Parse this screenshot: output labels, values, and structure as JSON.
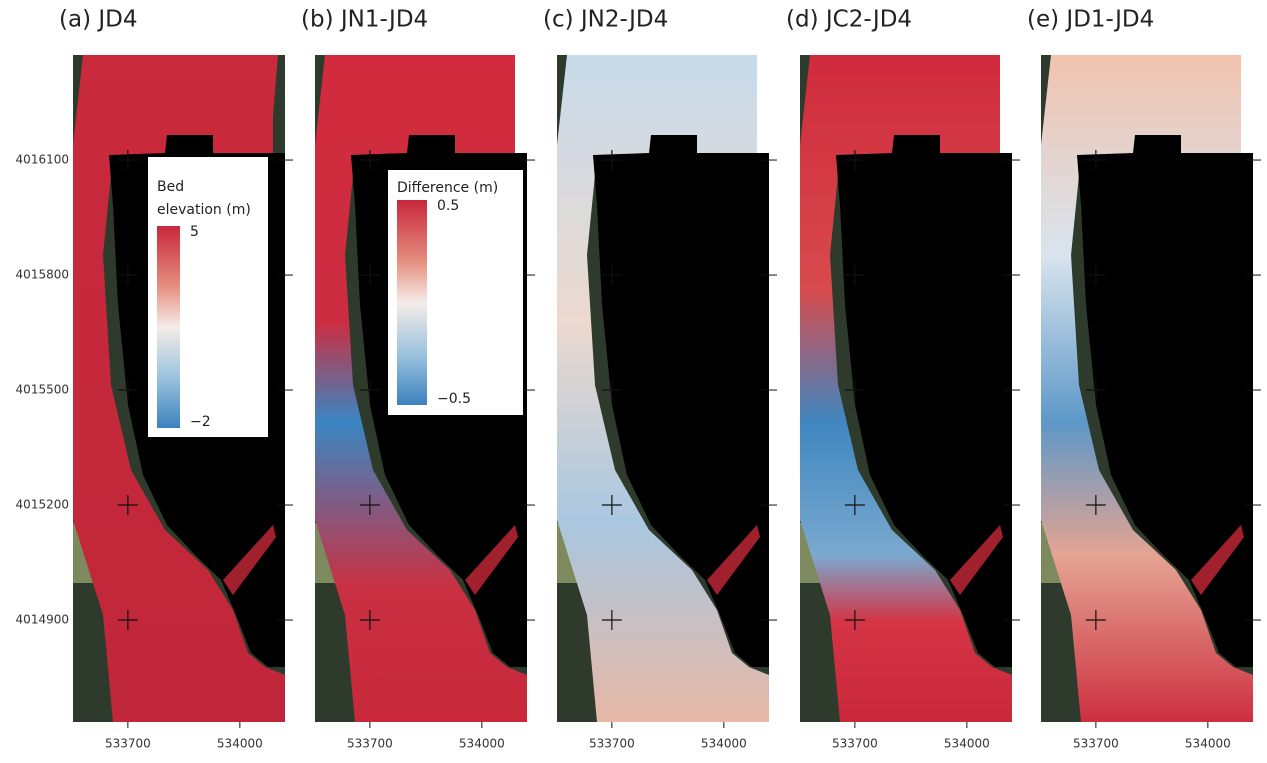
{
  "panels": [
    {
      "title": "(a) JD4",
      "legend": {
        "title_lines": [
          "Bed",
          "elevation (m)"
        ],
        "ticks": [
          5,
          {
            "value": -2,
            "label": "−2"
          }
        ]
      }
    },
    {
      "title": "(b) JN1-JD4",
      "legend": {
        "title_lines": [
          "Difference (m)"
        ],
        "ticks": [
          0.5,
          {
            "value": -0.5,
            "label": "−0.5"
          }
        ]
      }
    },
    {
      "title": "(c) JN2-JD4"
    },
    {
      "title": "(d) JC2-JD4"
    },
    {
      "title": "(e) JD1-JD4"
    }
  ],
  "y_axis": {
    "lim": [
      4014634,
      4016374
    ],
    "ticks": [
      4016100,
      4015800,
      4015500,
      4015200,
      4014900
    ]
  },
  "x_axis": {
    "lim": [
      533553,
      534121
    ],
    "ticks": [
      533700,
      534000
    ]
  }
}
